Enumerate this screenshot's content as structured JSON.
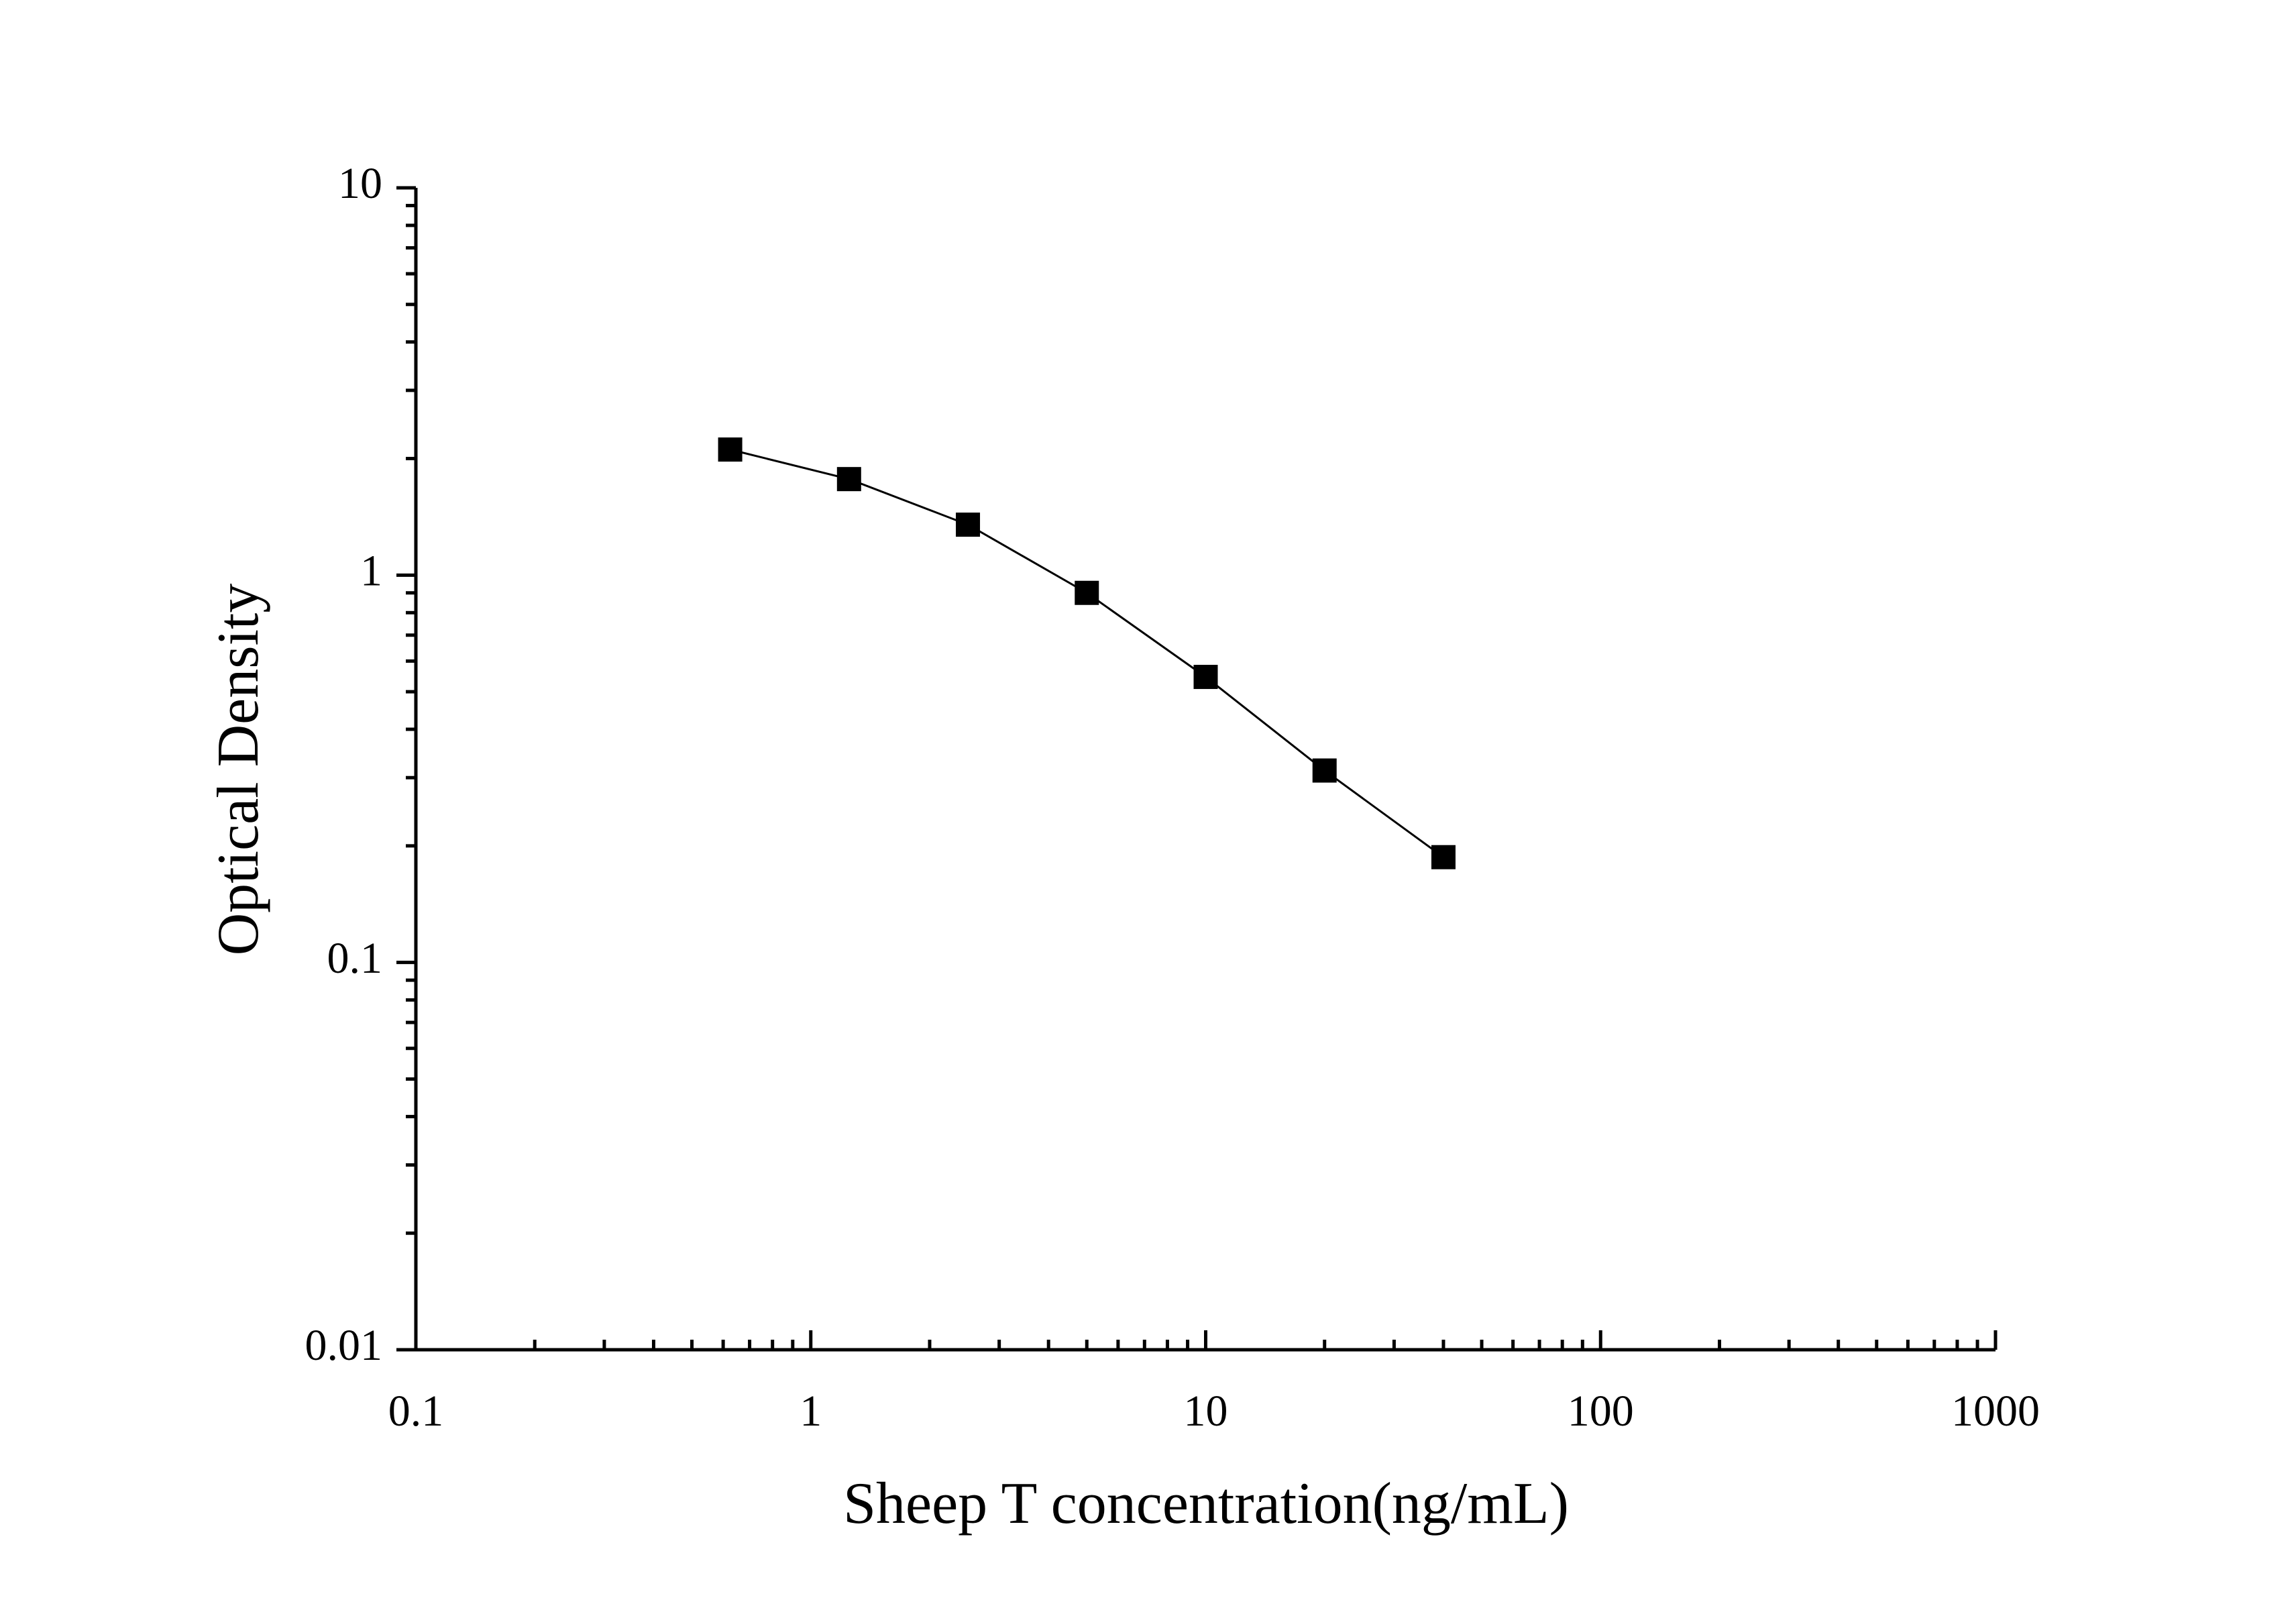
{
  "chart_data": {
    "type": "line",
    "x_label": "Sheep T concentration(ng/mL)",
    "y_label": "Optical Density",
    "x": [
      0.625,
      1.25,
      2.5,
      5,
      10,
      20,
      40
    ],
    "values": [
      2.11,
      1.77,
      1.35,
      0.9,
      0.546,
      0.313,
      0.187
    ],
    "color": "#000000",
    "x_log": true,
    "y_log": true,
    "xlim": [
      0.1,
      1000
    ],
    "xticks": [
      0.1,
      1,
      10,
      100,
      1000
    ],
    "ylim": [
      0.01,
      10
    ],
    "yticks": [
      0.01,
      0.1,
      1,
      10
    ]
  }
}
